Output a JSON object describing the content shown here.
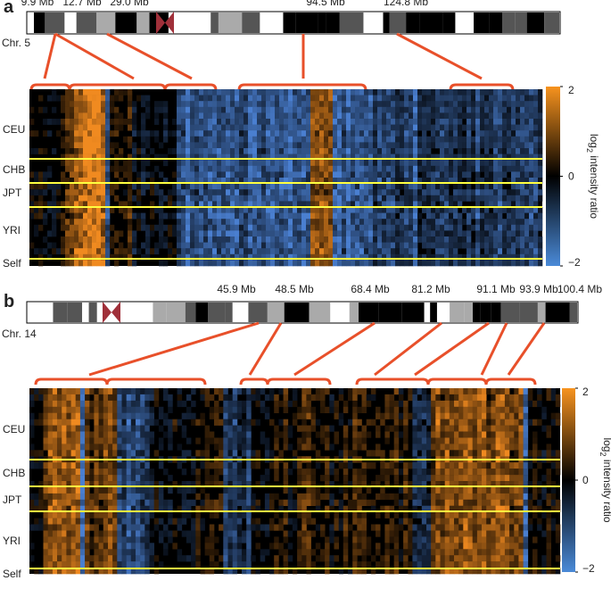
{
  "panels": [
    {
      "label": "a",
      "chromosome": "Chr. 5",
      "positions": [
        "9.9 Mb",
        "12.7 Mb",
        "29.0 Mb",
        "94.5 Mb",
        "124.8 Mb"
      ],
      "populations": [
        "CEU",
        "CHB",
        "JPT",
        "YRI",
        "Self"
      ],
      "colorbar": {
        "label": "log",
        "label_sub": "2",
        "label_rest": " intensity ratio",
        "lim": [
          -2,
          2
        ],
        "ticks": [
          2,
          0,
          {
            "value": -2,
            "label": "−2"
          }
        ]
      }
    },
    {
      "label": "b",
      "chromosome": "Chr. 14",
      "positions": [
        "45.9 Mb",
        "48.5 Mb",
        "68.4 Mb",
        "81.2 Mb",
        "91.1 Mb",
        "93.9 Mb",
        "100.4 Mb"
      ],
      "populations": [
        "CEU",
        "CHB",
        "JPT",
        "YRI",
        "Self"
      ],
      "colorbar": {
        "label": "log",
        "label_sub": "2",
        "label_rest": " intensity ratio",
        "lim": [
          -2,
          2
        ],
        "ticks": [
          2,
          0,
          {
            "value": -2,
            "label": "−2"
          }
        ]
      }
    }
  ]
}
